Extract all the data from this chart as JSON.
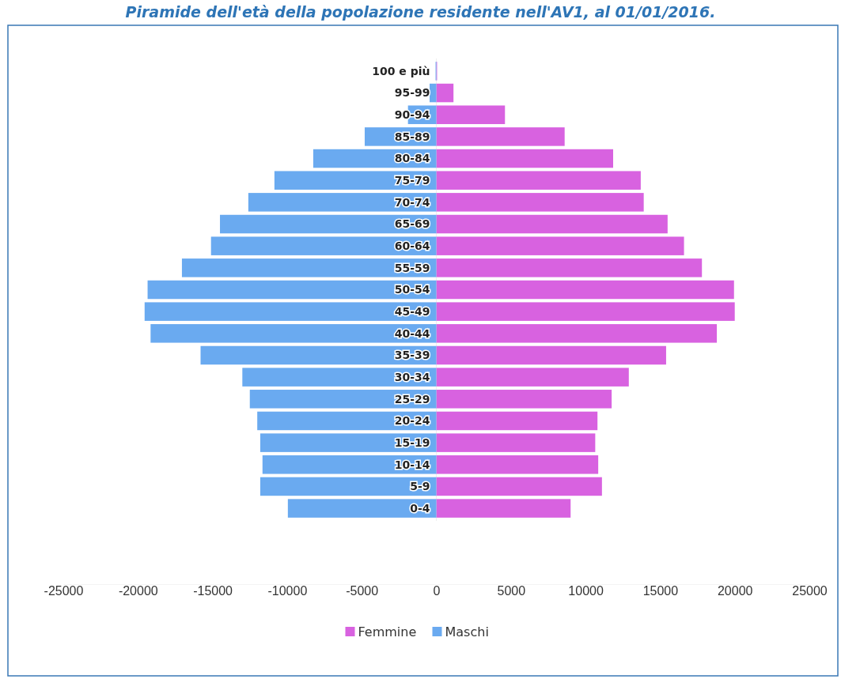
{
  "chart_data": {
    "type": "bar",
    "orientation": "horizontal",
    "title": "Piramide dell'età della popolazione residente nell'AV1, al 01/01/2016.",
    "categories": [
      "100 e più",
      "95-99",
      "90-94",
      "85-89",
      "80-84",
      "75-79",
      "70-74",
      "65-69",
      "60-64",
      "55-59",
      "50-54",
      "45-49",
      "40-44",
      "35-39",
      "30-34",
      "25-29",
      "20-24",
      "15-19",
      "10-14",
      "5-9",
      "0-4"
    ],
    "series": [
      {
        "name": "Femmine",
        "color": "#d862e0",
        "values": [
          50,
          1150,
          4600,
          8600,
          11850,
          13700,
          13900,
          15500,
          16600,
          17800,
          19950,
          20000,
          18800,
          15400,
          12900,
          11750,
          10800,
          10650,
          10850,
          11100,
          9000
        ]
      },
      {
        "name": "Maschi",
        "color": "#6aaaf0",
        "values": [
          -50,
          -450,
          -1900,
          -4800,
          -8250,
          -10850,
          -12600,
          -14500,
          -15100,
          -17050,
          -19350,
          -19550,
          -19150,
          -15800,
          -13000,
          -12500,
          -12000,
          -11800,
          -11650,
          -11800,
          -9950
        ]
      }
    ],
    "stacked": true,
    "xlim": [
      -25000,
      25000
    ],
    "xticks": [
      -25000,
      -20000,
      -15000,
      -10000,
      -5000,
      0,
      5000,
      10000,
      15000,
      20000,
      25000
    ],
    "legend": "bottom"
  }
}
